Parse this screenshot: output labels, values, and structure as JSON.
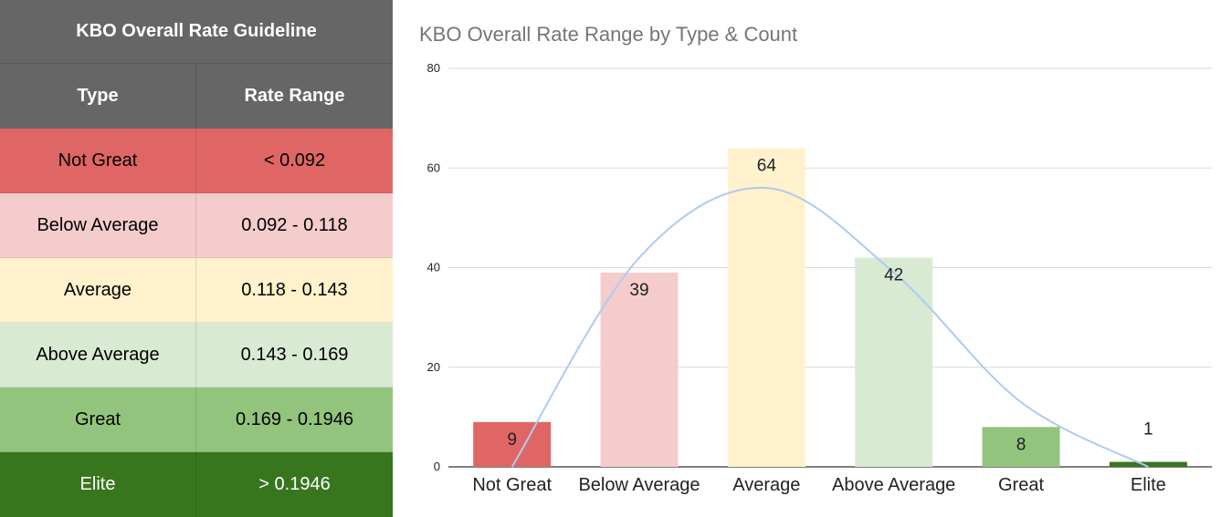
{
  "table": {
    "title": "KBO Overall Rate Guideline",
    "header_bg": "#666666",
    "columns": [
      "Type",
      "Rate Range"
    ],
    "rows": [
      {
        "type": "Not Great",
        "range": "< 0.092",
        "bg": "#e06666",
        "fg": "#000000"
      },
      {
        "type": "Below Average",
        "range": "0.092 - 0.118",
        "bg": "#f4cccc",
        "fg": "#000000"
      },
      {
        "type": "Average",
        "range": "0.118 - 0.143",
        "bg": "#fff2cc",
        "fg": "#000000"
      },
      {
        "type": "Above Average",
        "range": "0.143 - 0.169",
        "bg": "#d9ead3",
        "fg": "#000000"
      },
      {
        "type": "Great",
        "range": "0.169 - 0.1946",
        "bg": "#93c47d",
        "fg": "#000000"
      },
      {
        "type": "Elite",
        "range": "> 0.1946",
        "bg": "#38761d",
        "fg": "#ffffff"
      }
    ]
  },
  "chart_data": {
    "type": "bar",
    "title": "KBO Overall Rate Range by Type & Count",
    "xlabel": "",
    "ylabel": "",
    "categories": [
      "Not Great",
      "Below Average",
      "Average",
      "Above Average",
      "Great",
      "Elite"
    ],
    "values": [
      9,
      39,
      64,
      42,
      8,
      1
    ],
    "bar_colors": [
      "#e06666",
      "#f4cccc",
      "#fff2cc",
      "#d9ead3",
      "#93c47d",
      "#38761d"
    ],
    "label_colors": [
      "#222222",
      "#222222",
      "#222222",
      "#222222",
      "#222222",
      "#38761d"
    ],
    "ylim": [
      0,
      80
    ],
    "yticks": [
      0,
      20,
      40,
      60,
      80
    ],
    "grid": true,
    "legend": "none",
    "trendline": {
      "type": "smooth curve",
      "color": "#aecbf0",
      "values": [
        0,
        42,
        56,
        39,
        13,
        0
      ]
    }
  }
}
